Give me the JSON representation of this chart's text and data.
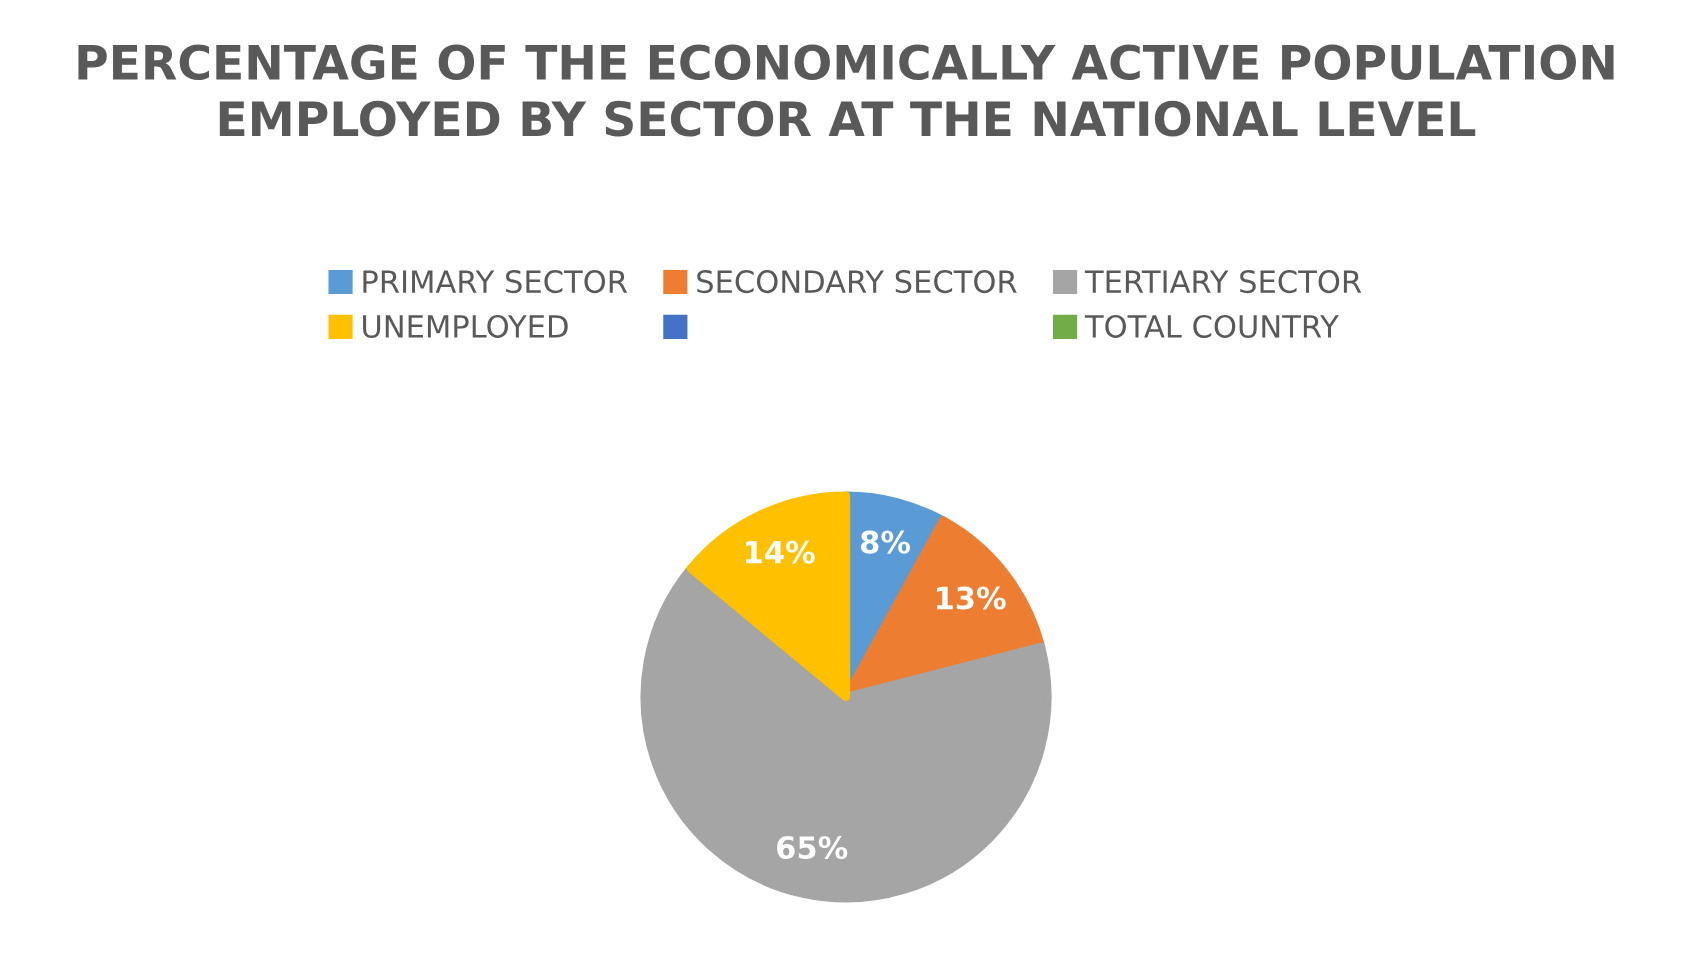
{
  "chart_data": {
    "type": "pie",
    "title": "PERCENTAGE OF THE ECONOMICALLY ACTIVE POPULATION EMPLOYED BY SECTOR AT THE NATIONAL LEVEL",
    "categories": [
      "PRIMARY SECTOR",
      "SECONDARY SECTOR",
      "TERTIARY SECTOR",
      "UNEMPLOYED",
      null,
      "TOTAL COUNTRY"
    ],
    "values": [
      8,
      13,
      65,
      14,
      0,
      0
    ],
    "colors": [
      "#5b9bd5",
      "#ed7d31",
      "#a5a5a5",
      "#ffc000",
      "#4472c4",
      "#70ad47"
    ],
    "value_labels": [
      "8%",
      "13%",
      "65%",
      "14%",
      null,
      null
    ],
    "legend": "top"
  }
}
